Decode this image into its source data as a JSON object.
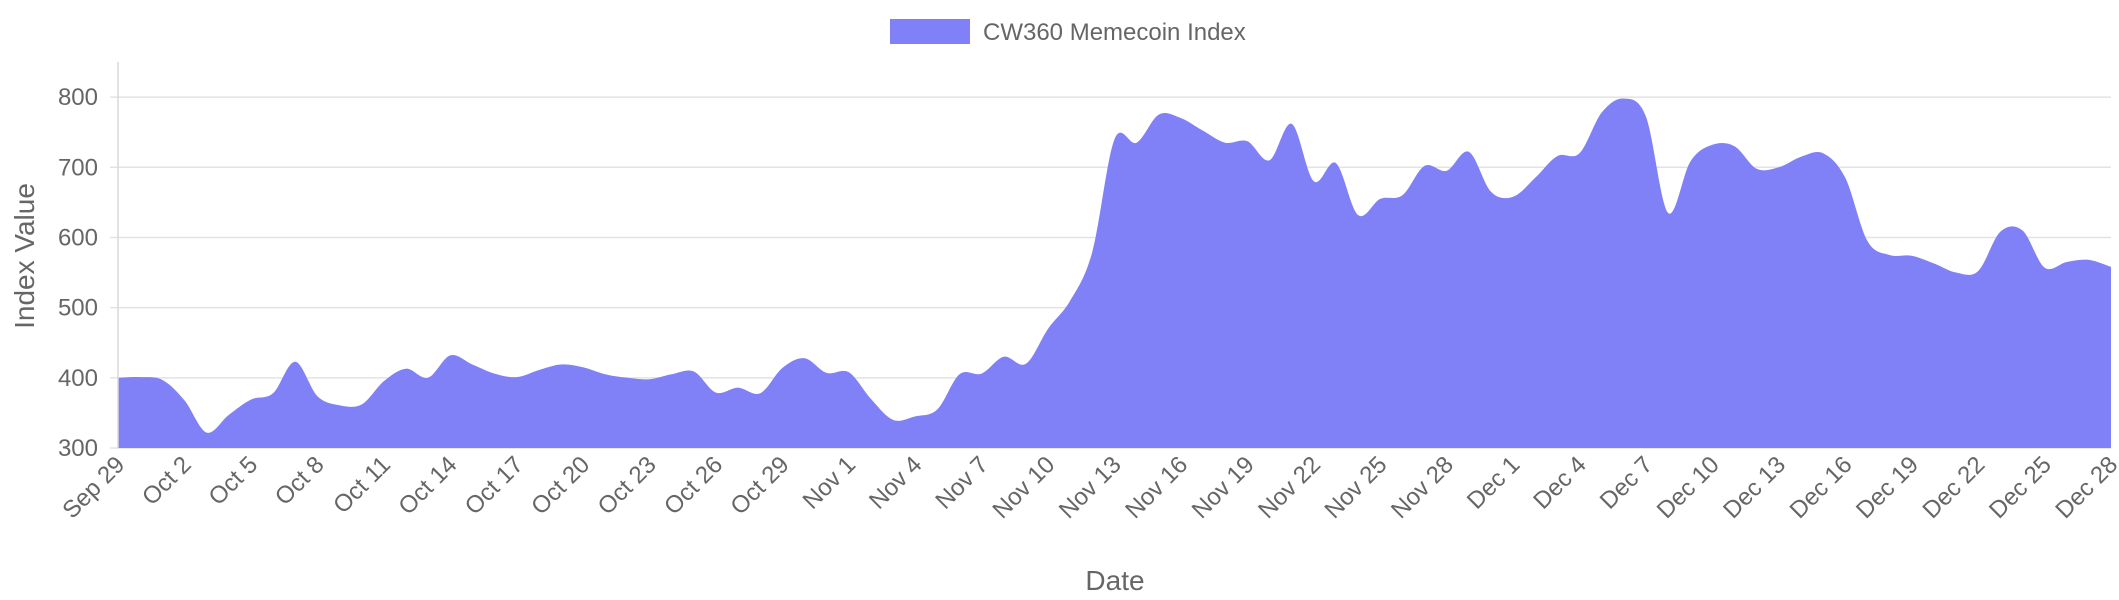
{
  "chart_data": {
    "type": "area",
    "xlabel": "Date",
    "ylabel": "Index Value",
    "ylim": [
      300,
      850
    ],
    "yticks": [
      300,
      400,
      500,
      600,
      700,
      800
    ],
    "grid": true,
    "legend_position": "top-center",
    "x_tick_labels": [
      "Sep 29",
      "Oct 2",
      "Oct 5",
      "Oct 8",
      "Oct 11",
      "Oct 14",
      "Oct 17",
      "Oct 20",
      "Oct 23",
      "Oct 26",
      "Oct 29",
      "Nov 1",
      "Nov 4",
      "Nov 7",
      "Nov 10",
      "Nov 13",
      "Nov 16",
      "Nov 19",
      "Nov 22",
      "Nov 25",
      "Nov 28",
      "Dec 1",
      "Dec 4",
      "Dec 7",
      "Dec 10",
      "Dec 13",
      "Dec 16",
      "Dec 19",
      "Dec 22",
      "Dec 25",
      "Dec 28"
    ],
    "series": [
      {
        "name": "CW360 Memecoin Index",
        "color": "#8080f7",
        "x": [
          "2024-09-29",
          "2024-09-30",
          "2024-10-01",
          "2024-10-02",
          "2024-10-03",
          "2024-10-04",
          "2024-10-05",
          "2024-10-06",
          "2024-10-07",
          "2024-10-08",
          "2024-10-09",
          "2024-10-10",
          "2024-10-11",
          "2024-10-12",
          "2024-10-13",
          "2024-10-14",
          "2024-10-15",
          "2024-10-16",
          "2024-10-17",
          "2024-10-18",
          "2024-10-19",
          "2024-10-20",
          "2024-10-21",
          "2024-10-22",
          "2024-10-23",
          "2024-10-24",
          "2024-10-25",
          "2024-10-26",
          "2024-10-27",
          "2024-10-28",
          "2024-10-29",
          "2024-10-30",
          "2024-10-31",
          "2024-11-01",
          "2024-11-02",
          "2024-11-03",
          "2024-11-04",
          "2024-11-05",
          "2024-11-06",
          "2024-11-07",
          "2024-11-08",
          "2024-11-09",
          "2024-11-10",
          "2024-11-11",
          "2024-11-12",
          "2024-11-13",
          "2024-11-14",
          "2024-11-15",
          "2024-11-16",
          "2024-11-17",
          "2024-11-18",
          "2024-11-19",
          "2024-11-20",
          "2024-11-21",
          "2024-11-22",
          "2024-11-23",
          "2024-11-24",
          "2024-11-25",
          "2024-11-26",
          "2024-11-27",
          "2024-11-28",
          "2024-11-29",
          "2024-11-30",
          "2024-12-01",
          "2024-12-02",
          "2024-12-03",
          "2024-12-04",
          "2024-12-05",
          "2024-12-06",
          "2024-12-07",
          "2024-12-08",
          "2024-12-09",
          "2024-12-10",
          "2024-12-11",
          "2024-12-12",
          "2024-12-13",
          "2024-12-14",
          "2024-12-15",
          "2024-12-16",
          "2024-12-17",
          "2024-12-18",
          "2024-12-19",
          "2024-12-20",
          "2024-12-21",
          "2024-12-22",
          "2024-12-23",
          "2024-12-24",
          "2024-12-25",
          "2024-12-26",
          "2024-12-27",
          "2024-12-28"
        ],
        "values": [
          400,
          401,
          397,
          368,
          322,
          347,
          369,
          378,
          423,
          374,
          361,
          362,
          395,
          413,
          400,
          432,
          419,
          406,
          401,
          411,
          419,
          415,
          405,
          400,
          398,
          405,
          409,
          379,
          386,
          378,
          414,
          428,
          407,
          408,
          370,
          340,
          345,
          355,
          405,
          406,
          430,
          420,
          470,
          510,
          580,
          740,
          735,
          775,
          770,
          752,
          735,
          737,
          710,
          762,
          680,
          706,
          632,
          655,
          660,
          702,
          695,
          722,
          665,
          658,
          685,
          716,
          720,
          778,
          798,
          772,
          635,
          708,
          732,
          730,
          698,
          700,
          715,
          720,
          685,
          595,
          575,
          574,
          563,
          550,
          552,
          608,
          610,
          557,
          565,
          568,
          558
        ]
      }
    ]
  }
}
